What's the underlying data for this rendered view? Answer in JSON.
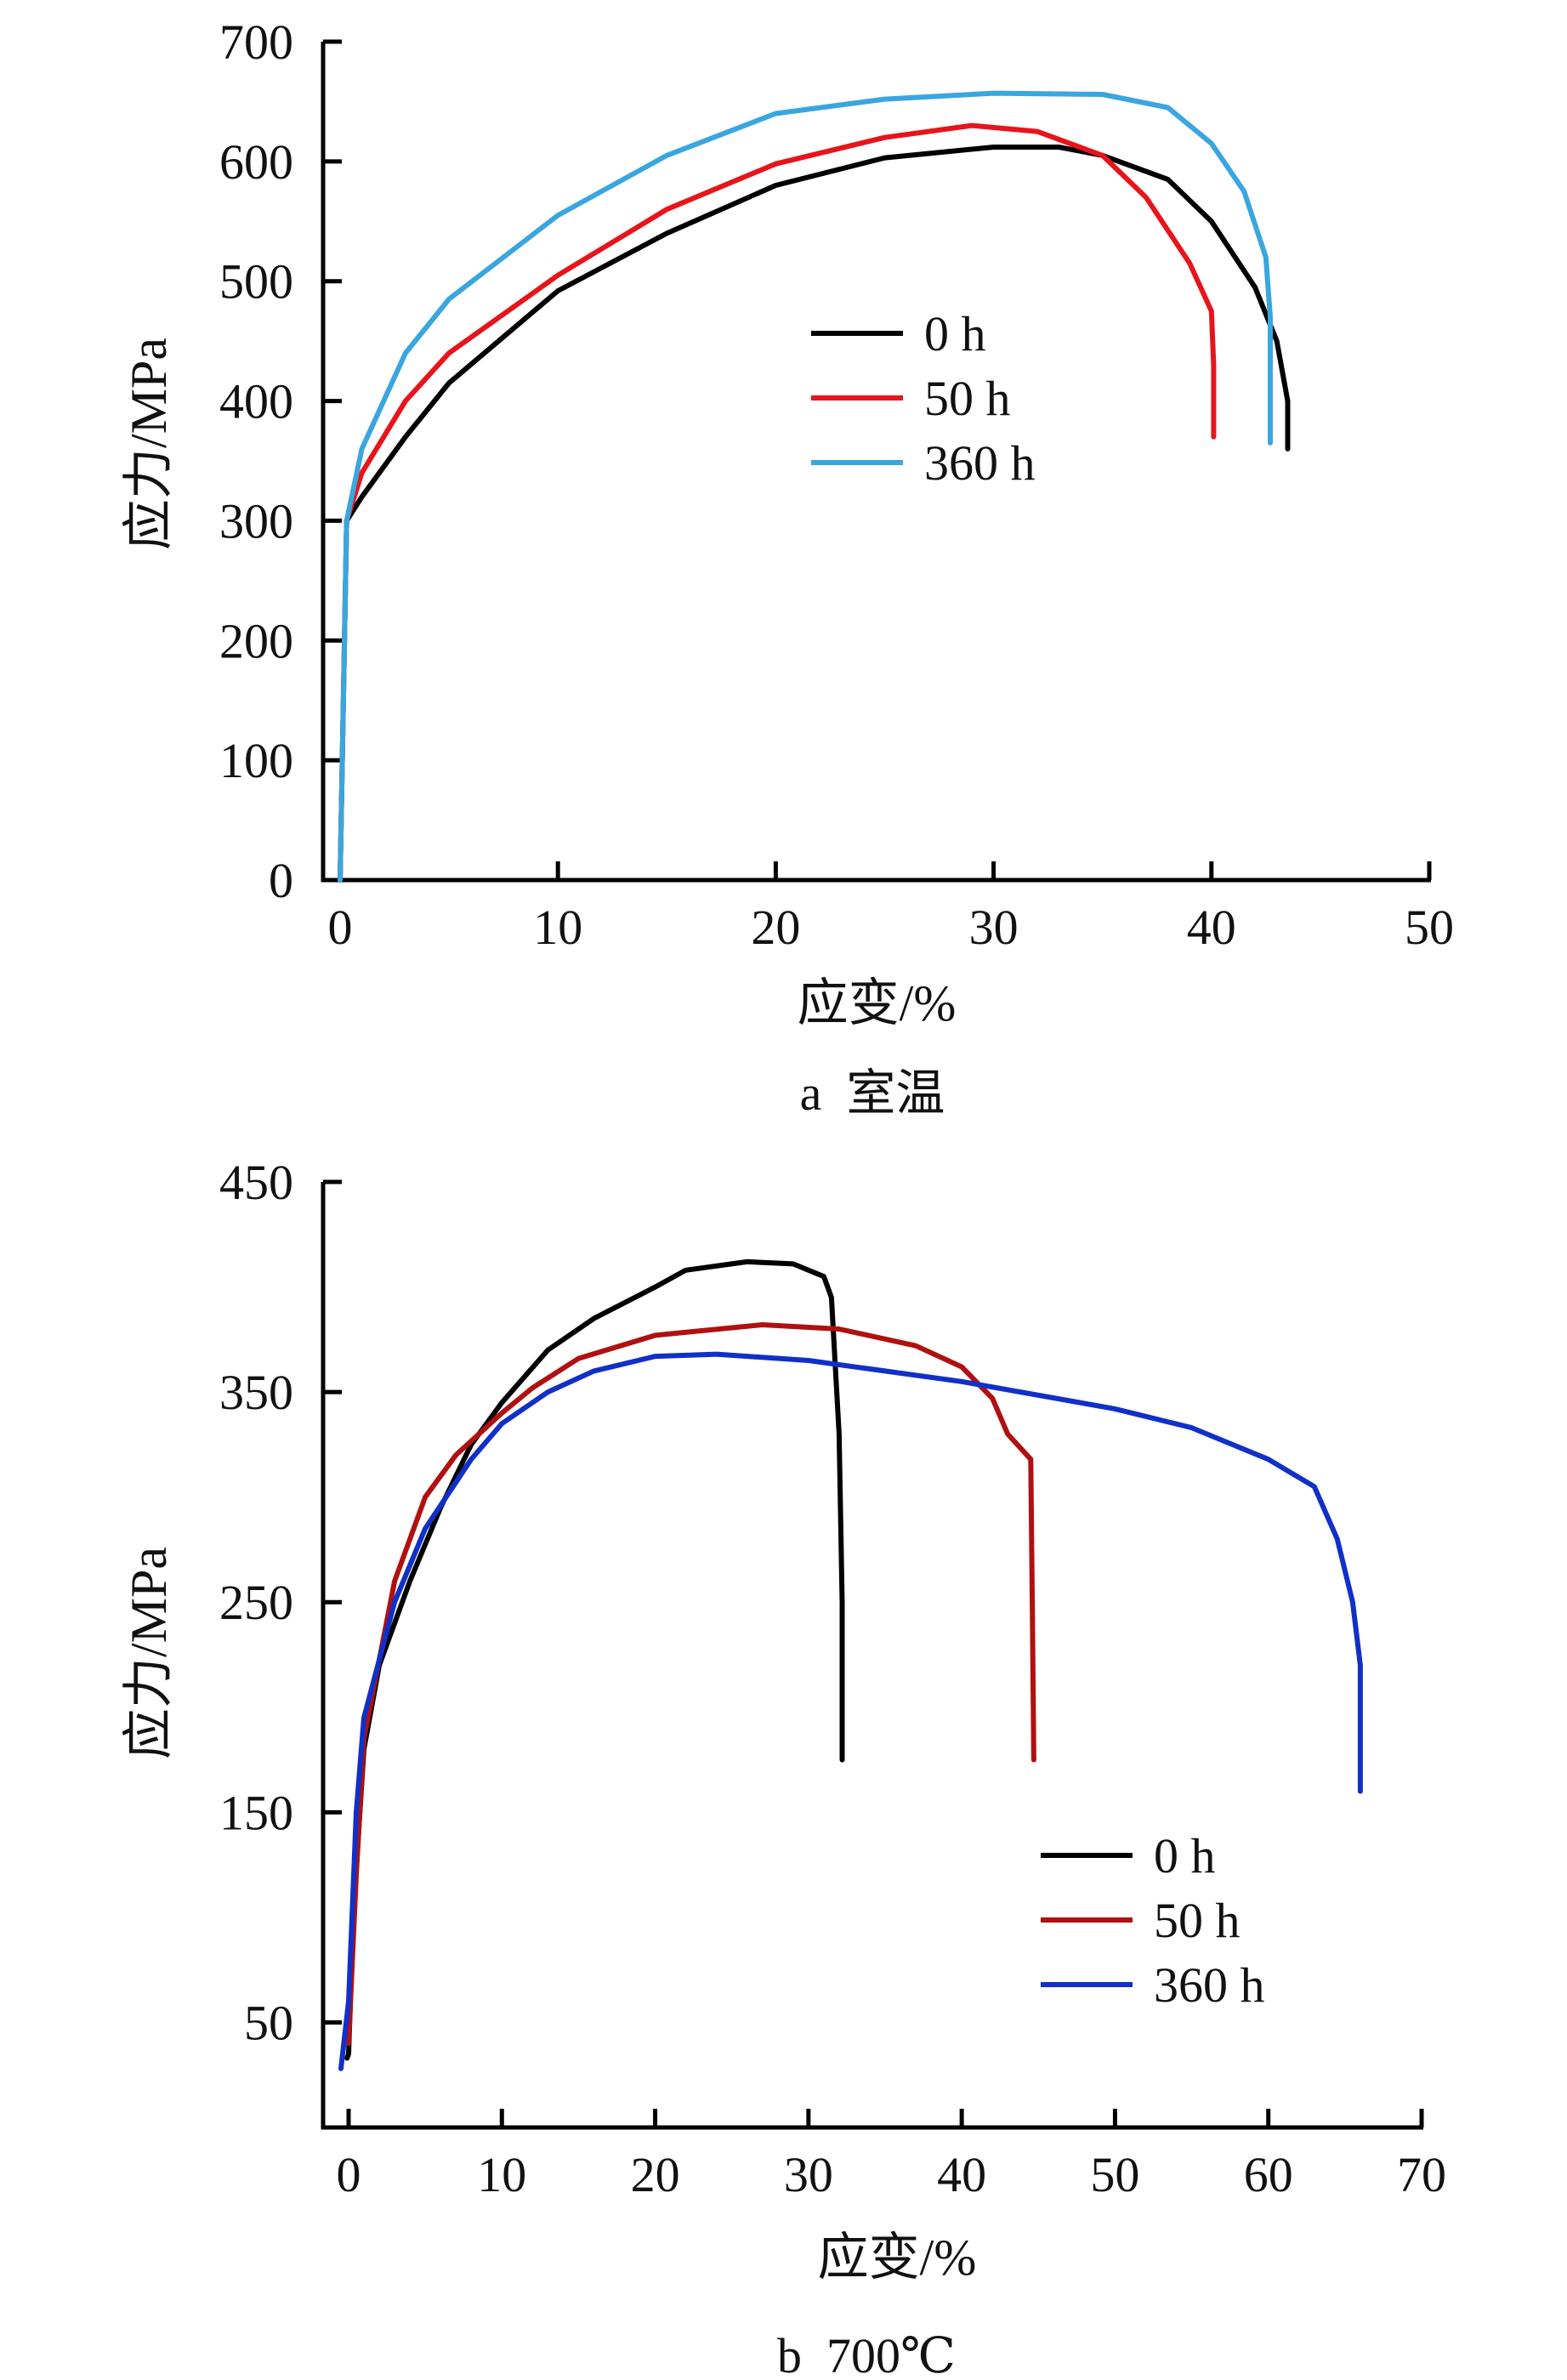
{
  "chart_data": [
    {
      "type": "line",
      "caption": "a  室温",
      "xlabel": "应变/%",
      "ylabel": "应力/MPa",
      "xlim": [
        -1,
        50
      ],
      "ylim": [
        0,
        700
      ],
      "xticks": [
        0,
        10,
        20,
        30,
        40,
        50
      ],
      "yticks": [
        0,
        100,
        200,
        300,
        400,
        500,
        600,
        700
      ],
      "grid": false,
      "legend": "center",
      "series": [
        {
          "name": "0 h",
          "color": "#000000",
          "x": [
            0,
            0.3,
            1,
            3,
            5,
            10,
            15,
            20,
            25,
            30,
            33,
            35,
            38,
            40,
            42,
            43,
            43.5,
            43.5
          ],
          "y": [
            0,
            300,
            320,
            370,
            415,
            492,
            540,
            580,
            603,
            612,
            612,
            605,
            585,
            550,
            495,
            450,
            400,
            360
          ]
        },
        {
          "name": "50 h",
          "color": "#e8141b",
          "x": [
            0,
            0.3,
            1,
            3,
            5,
            10,
            15,
            20,
            25,
            29,
            32,
            35,
            37,
            39,
            40,
            40.1,
            40.1
          ],
          "y": [
            0,
            300,
            340,
            400,
            440,
            505,
            560,
            598,
            620,
            630,
            625,
            605,
            570,
            515,
            475,
            430,
            370
          ]
        },
        {
          "name": "360 h",
          "color": "#3aa6e0",
          "x": [
            0,
            0.3,
            1,
            3,
            5,
            10,
            15,
            20,
            25,
            30,
            35,
            38,
            40,
            41.5,
            42.5,
            42.7,
            42.7
          ],
          "y": [
            0,
            300,
            360,
            440,
            485,
            555,
            605,
            640,
            652,
            657,
            656,
            645,
            615,
            575,
            520,
            470,
            365
          ]
        }
      ]
    },
    {
      "type": "line",
      "caption": "b  700℃",
      "xlabel": "应变/%",
      "ylabel": "应力/MPa",
      "xlim": [
        -1.5,
        70
      ],
      "ylim": [
        0,
        450
      ],
      "xticks": [
        0,
        10,
        20,
        30,
        40,
        50,
        60,
        70
      ],
      "yticks": [
        50,
        150,
        250,
        350,
        450
      ],
      "grid": false,
      "legend": "lower-right",
      "series": [
        {
          "name": "0 h",
          "color": "#000000",
          "x": [
            -0.1,
            0,
            0.3,
            1,
            2,
            4,
            6,
            8,
            10,
            13,
            16,
            20,
            22,
            26,
            29,
            31,
            31.5,
            32,
            32.2,
            32.2
          ],
          "y": [
            33,
            35,
            100,
            180,
            220,
            260,
            295,
            325,
            345,
            370,
            385,
            400,
            408,
            412,
            411,
            405,
            395,
            330,
            250,
            175
          ]
        },
        {
          "name": "50 h",
          "color": "#b01010",
          "x": [
            0,
            0.5,
            1,
            3,
            5,
            7,
            10,
            12,
            15,
            20,
            27,
            32,
            37,
            40,
            42,
            43,
            44.5,
            44.6,
            44.7
          ],
          "y": [
            40,
            120,
            185,
            260,
            300,
            320,
            340,
            352,
            366,
            377,
            382,
            380,
            372,
            362,
            347,
            330,
            318,
            250,
            175
          ]
        },
        {
          "name": "360 h",
          "color": "#1030c8",
          "x": [
            -0.5,
            0,
            0.5,
            1,
            3,
            5,
            8,
            10,
            13,
            16,
            20,
            24,
            30,
            40,
            50,
            55,
            60,
            63,
            64.5,
            65.5,
            66,
            66
          ],
          "y": [
            28,
            60,
            150,
            195,
            250,
            285,
            318,
            335,
            350,
            360,
            367,
            368,
            365,
            355,
            342,
            333,
            318,
            305,
            280,
            250,
            220,
            160
          ]
        }
      ]
    }
  ]
}
